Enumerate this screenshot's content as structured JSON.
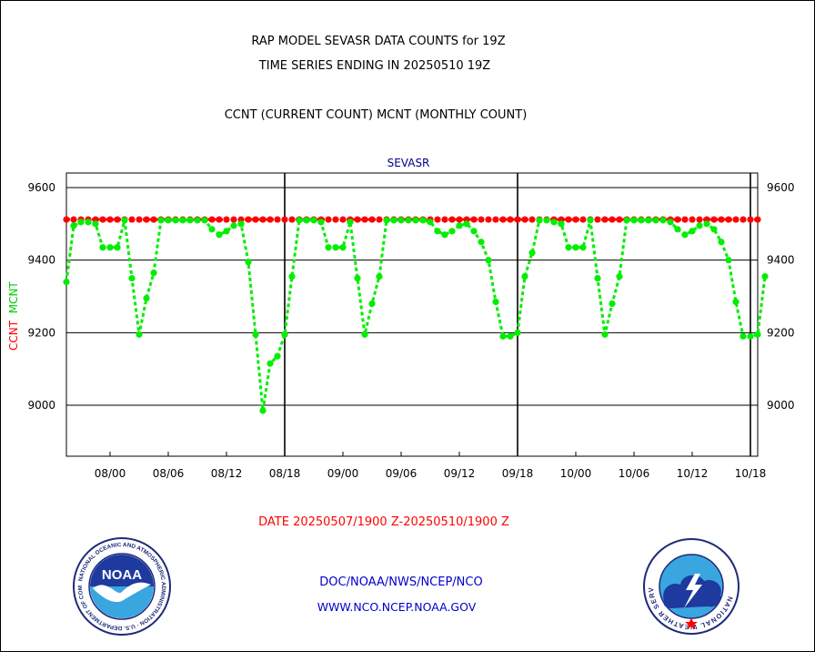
{
  "header": {
    "line1": "RAP MODEL SEVASR DATA COUNTS for 19Z",
    "line2": "TIME SERIES ENDING IN 20250510 19Z",
    "line3": "CCNT (CURRENT COUNT) MCNT (MONTHLY COUNT)"
  },
  "footer": {
    "date_range": "DATE 20250507/1900 Z-20250510/1900 Z",
    "link1": "DOC/NOAA/NWS/NCEP/NCO",
    "link2": "WWW.NCO.NCEP.NOAA.GOV"
  },
  "logos": {
    "noaa_text": "NOAA",
    "noaa_ring": "NATIONAL OCEANIC AND ATMOSPHERIC ADMINISTRATION · U.S. DEPARTMENT OF COMMERCE",
    "nws_ring": "NATIONAL WEATHER SERVICE"
  },
  "colors": {
    "ccnt": "#ff0000",
    "mcnt": "#00ee00",
    "text_blue": "#0000cd",
    "title_blue": "#00008b"
  },
  "chart_data": {
    "type": "line",
    "title": "SEVASR",
    "ylabel_ccnt": "CCNT",
    "ylabel_mcnt": "MCNT",
    "ylim": [
      8860,
      9640
    ],
    "xlim": [
      0,
      95
    ],
    "yticks": [
      9000,
      9200,
      9400,
      9600
    ],
    "grid": true,
    "x_tick_labels": [
      {
        "x": 6,
        "label": "08/00"
      },
      {
        "x": 14,
        "label": "08/06"
      },
      {
        "x": 22,
        "label": "08/12"
      },
      {
        "x": 30,
        "label": "08/18"
      },
      {
        "x": 38,
        "label": "09/00"
      },
      {
        "x": 46,
        "label": "09/06"
      },
      {
        "x": 54,
        "label": "09/12"
      },
      {
        "x": 62,
        "label": "09/18"
      },
      {
        "x": 70,
        "label": "10/00"
      },
      {
        "x": 78,
        "label": "10/06"
      },
      {
        "x": 86,
        "label": "10/12"
      },
      {
        "x": 94,
        "label": "10/18"
      }
    ],
    "day_boundaries": [
      30,
      62,
      94
    ],
    "x_unit": "hour index from 20250507/1900 Z",
    "series": [
      {
        "name": "CCNT",
        "values": [
          9340,
          9495,
          9505,
          9505,
          9500,
          9435,
          9435,
          9435,
          9510,
          9350,
          9195,
          9295,
          9365,
          9510,
          9510,
          9510,
          9510,
          9510,
          9510,
          9510,
          9485,
          9470,
          9480,
          9495,
          9500,
          9395,
          9195,
          8985,
          9115,
          9135,
          9195,
          9355,
          9510,
          9510,
          9510,
          9505,
          9435,
          9435,
          9435,
          9505,
          9350,
          9195,
          9280,
          9355,
          9510,
          9510,
          9510,
          9510,
          9510,
          9510,
          9505,
          9480,
          9470,
          9480,
          9495,
          9500,
          9480,
          9450,
          9400,
          9285,
          9190,
          9190,
          9200,
          9355,
          9420,
          9510,
          9510,
          9505,
          9500,
          9435,
          9435,
          9435,
          9510,
          9350,
          9195,
          9280,
          9355,
          9510,
          9510,
          9510,
          9510,
          9510,
          9510,
          9505,
          9485,
          9470,
          9480,
          9495,
          9500,
          9485,
          9450,
          9400,
          9285,
          9190,
          9190,
          9195,
          9355
        ]
      },
      {
        "name": "MCNT",
        "constant": 9512
      }
    ]
  }
}
